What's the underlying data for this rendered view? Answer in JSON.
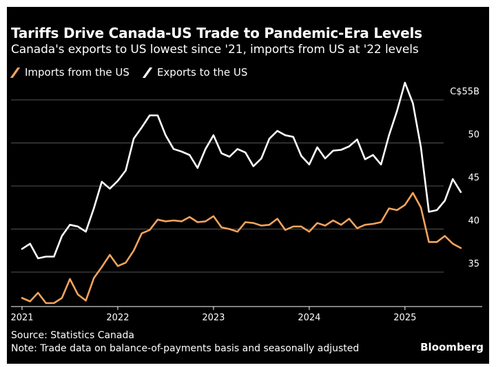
{
  "title": "Tariffs Drive Canada-US Trade to Pandemic-Era Levels",
  "subtitle": "Canada's exports to US lowest since '21, imports from US at '22 levels",
  "footer": {
    "source": "Source: Statistics Canada",
    "note": "Note: Trade data on balance-of-payments basis and seasonally adjusted",
    "brand": "Bloomberg"
  },
  "colors": {
    "background": "#000000",
    "gridline": "#555555",
    "imports": "#f5a35c",
    "exports": "#ffffff",
    "text": "#ffffff"
  },
  "chart_data": {
    "type": "line",
    "x_unit": "month",
    "x_start": "2021-01",
    "xlabel": "",
    "ylabel": "",
    "ylim": [
      31,
      57
    ],
    "y_ticks": [
      35,
      40,
      45,
      50,
      55
    ],
    "y_tick_labels": [
      "35",
      "40",
      "45",
      "50",
      "C$55B"
    ],
    "x_ticks": [
      "2021-01",
      "2022-01",
      "2023-01",
      "2024-01",
      "2025-01"
    ],
    "x_tick_labels": [
      "2021",
      "2022",
      "2023",
      "2024",
      "2025"
    ],
    "grid": "horizontal",
    "legend_position": "top-left",
    "series": [
      {
        "name": "Imports from the US",
        "color": "#f5a35c",
        "values": [
          32.0,
          31.6,
          32.6,
          31.4,
          31.4,
          32.0,
          34.2,
          32.4,
          31.7,
          34.3,
          35.6,
          37.0,
          35.7,
          36.1,
          37.5,
          39.5,
          39.9,
          41.1,
          40.9,
          41.0,
          40.9,
          41.4,
          40.8,
          40.9,
          41.5,
          40.2,
          40.0,
          39.7,
          40.8,
          40.7,
          40.4,
          40.5,
          41.2,
          39.9,
          40.3,
          40.3,
          39.7,
          40.7,
          40.4,
          41.0,
          40.5,
          41.2,
          40.1,
          40.5,
          40.6,
          40.8,
          42.4,
          42.2,
          42.8,
          44.2,
          42.5,
          38.5,
          38.5,
          39.2,
          38.3,
          37.8
        ]
      },
      {
        "name": "Exports to the US",
        "color": "#ffffff",
        "values": [
          37.7,
          38.3,
          36.6,
          36.8,
          36.8,
          39.2,
          40.5,
          40.3,
          39.7,
          42.4,
          45.5,
          44.7,
          45.6,
          46.8,
          50.5,
          51.8,
          53.2,
          53.2,
          50.9,
          49.3,
          49.0,
          48.6,
          47.1,
          49.3,
          50.9,
          48.8,
          48.4,
          49.3,
          48.9,
          47.3,
          48.2,
          50.5,
          51.4,
          50.9,
          50.7,
          48.5,
          47.5,
          49.5,
          48.2,
          49.1,
          49.2,
          49.6,
          50.4,
          48.1,
          48.6,
          47.5,
          50.9,
          53.7,
          57.0,
          54.6,
          49.5,
          42.0,
          42.2,
          43.3,
          45.8,
          44.3
        ]
      }
    ]
  }
}
